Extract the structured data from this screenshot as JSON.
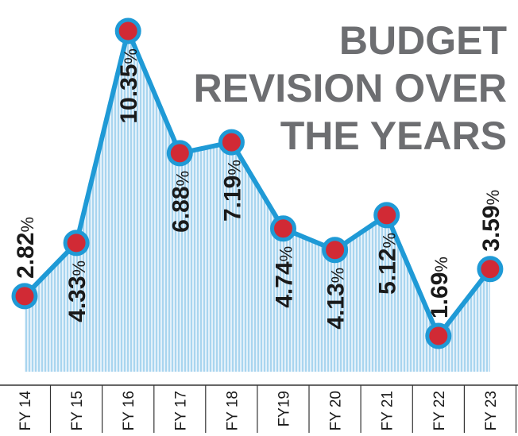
{
  "chart_data": {
    "type": "area",
    "title_lines": [
      "BUDGET",
      "REVISION OVER",
      "THE YEARS"
    ],
    "categories": [
      "FY 14",
      "FY 15",
      "FY 16",
      "FY 17",
      "FY 18",
      "FY19",
      "FY 20",
      "FY 21",
      "FY 22",
      "FY 23"
    ],
    "values": [
      2.82,
      4.33,
      10.35,
      6.88,
      7.19,
      4.74,
      4.13,
      5.12,
      1.69,
      3.59
    ],
    "value_labels": [
      "2.82",
      "4.33",
      "10.35",
      "6.88",
      "7.19",
      "4.74",
      "4.13",
      "5.12",
      "1.69",
      "3.59"
    ],
    "unit": "%",
    "grid": false,
    "colors": {
      "line": "#1f9ad6",
      "marker_fill": "#d12a35",
      "marker_stroke": "#1f9ad6",
      "area_fill": "#bfe0f3",
      "title": "#6d6e71",
      "text": "#1a1a1a"
    }
  }
}
